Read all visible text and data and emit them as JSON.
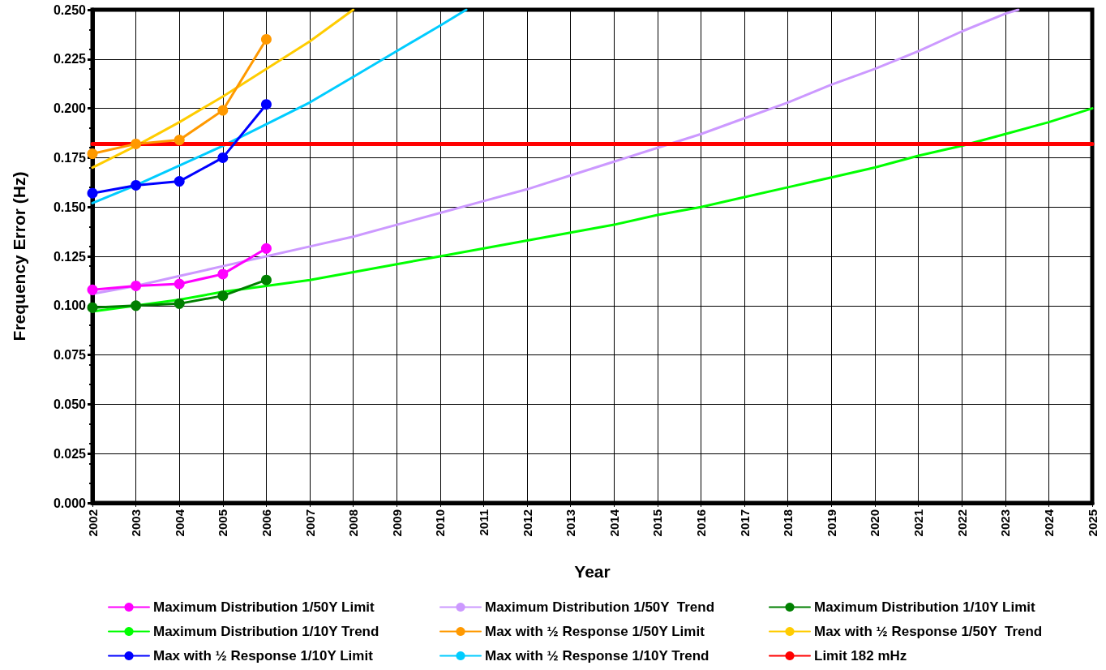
{
  "chart_data": {
    "type": "line",
    "xlabel": "Year",
    "ylabel": "Frequency Error (Hz)",
    "xlim": [
      2002,
      2025
    ],
    "xticks": [
      2002,
      2003,
      2004,
      2005,
      2006,
      2007,
      2008,
      2009,
      2010,
      2011,
      2012,
      2013,
      2014,
      2015,
      2016,
      2017,
      2018,
      2019,
      2020,
      2021,
      2022,
      2023,
      2024,
      2025
    ],
    "ylim": [
      0,
      0.25
    ],
    "yticks": [
      {
        "value": 0,
        "label": "0.000"
      },
      {
        "value": 0.025,
        "label": "0.025"
      },
      {
        "value": 0.05,
        "label": "0.050"
      },
      {
        "value": 0.075,
        "label": "0.075"
      },
      {
        "value": 0.1,
        "label": "0.100"
      },
      {
        "value": 0.125,
        "label": "0.125"
      },
      {
        "value": 0.15,
        "label": "0.150"
      },
      {
        "value": 0.175,
        "label": "0.175"
      },
      {
        "value": 0.2,
        "label": "0.200"
      },
      {
        "value": 0.225,
        "label": "0.225"
      },
      {
        "value": 0.25,
        "label": "0.250"
      }
    ],
    "grid": true,
    "legend": "bottom",
    "line_style": "solid",
    "series": [
      {
        "name": "Maximum Distribution 1/50Y Limit",
        "color": "#ff00ff",
        "marker": "circle",
        "x": [
          2002,
          2003,
          2004,
          2005,
          2006
        ],
        "values": [
          0.108,
          0.11,
          0.111,
          0.116,
          0.129
        ]
      },
      {
        "name": "Maximum Distribution 1/50Y  Trend",
        "color": "#cc99ff",
        "marker": "none",
        "x": [
          2002,
          2003,
          2004,
          2005,
          2006,
          2007,
          2008,
          2009,
          2010,
          2011,
          2012,
          2013,
          2014,
          2015,
          2016,
          2017,
          2018,
          2019,
          2020,
          2021,
          2022,
          2023,
          2023.3
        ],
        "values": [
          0.106,
          0.11,
          0.115,
          0.12,
          0.125,
          0.13,
          0.135,
          0.141,
          0.147,
          0.153,
          0.159,
          0.166,
          0.173,
          0.18,
          0.187,
          0.195,
          0.203,
          0.212,
          0.22,
          0.229,
          0.239,
          0.248,
          0.25
        ]
      },
      {
        "name": "Maximum Distribution 1/10Y Limit",
        "color": "#008000",
        "marker": "circle",
        "x": [
          2002,
          2003,
          2004,
          2005,
          2006
        ],
        "values": [
          0.099,
          0.1,
          0.101,
          0.105,
          0.113
        ]
      },
      {
        "name": "Maximum Distribution 1/10Y Trend",
        "color": "#00ff00",
        "marker": "none",
        "x": [
          2002,
          2003,
          2004,
          2005,
          2006,
          2007,
          2008,
          2009,
          2010,
          2011,
          2012,
          2013,
          2014,
          2015,
          2016,
          2017,
          2018,
          2019,
          2020,
          2021,
          2022,
          2023,
          2024,
          2025
        ],
        "values": [
          0.097,
          0.1,
          0.103,
          0.107,
          0.11,
          0.113,
          0.117,
          0.121,
          0.125,
          0.129,
          0.133,
          0.137,
          0.141,
          0.146,
          0.15,
          0.155,
          0.16,
          0.165,
          0.17,
          0.176,
          0.181,
          0.187,
          0.193,
          0.2
        ]
      },
      {
        "name": "Max with ½ Response 1/50Y Limit",
        "color": "#ff9900",
        "marker": "circle",
        "x": [
          2002,
          2003,
          2004,
          2005,
          2006
        ],
        "values": [
          0.177,
          0.182,
          0.184,
          0.199,
          0.235
        ]
      },
      {
        "name": "Max with ½ Response 1/50Y  Trend",
        "color": "#ffcc00",
        "marker": "none",
        "x": [
          2002,
          2003,
          2004,
          2005,
          2006,
          2007,
          2008
        ],
        "values": [
          0.17,
          0.181,
          0.193,
          0.206,
          0.22,
          0.234,
          0.25
        ]
      },
      {
        "name": "Max with ½ Response 1/10Y Limit",
        "color": "#0000ff",
        "marker": "circle",
        "x": [
          2002,
          2003,
          2004,
          2005,
          2006
        ],
        "values": [
          0.157,
          0.161,
          0.163,
          0.175,
          0.202
        ]
      },
      {
        "name": "Max with ½ Response 1/10Y Trend",
        "color": "#00ccff",
        "marker": "none",
        "x": [
          2002,
          2003,
          2004,
          2005,
          2006,
          2007,
          2008,
          2009,
          2010,
          2010.6
        ],
        "values": [
          0.152,
          0.161,
          0.171,
          0.181,
          0.192,
          0.203,
          0.216,
          0.229,
          0.242,
          0.25
        ]
      },
      {
        "name": "Limit 182 mHz",
        "color": "#ff0000",
        "marker": "none",
        "x": [
          2002,
          2025
        ],
        "values": [
          0.182,
          0.182
        ]
      }
    ]
  }
}
